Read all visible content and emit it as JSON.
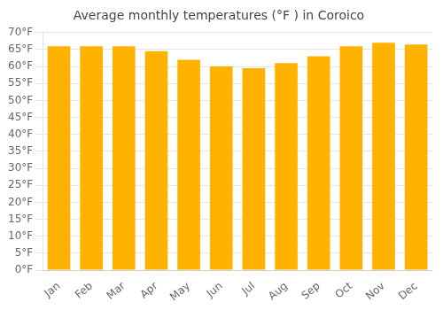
{
  "chart_data": {
    "type": "bar",
    "title": "Average monthly temperatures (°F ) in Coroico",
    "categories": [
      "Jan",
      "Feb",
      "Mar",
      "Apr",
      "May",
      "Jun",
      "Jul",
      "Aug",
      "Sep",
      "Oct",
      "Nov",
      "Dec"
    ],
    "values": [
      66,
      66,
      66,
      64.5,
      62,
      60,
      59.5,
      61,
      63,
      66,
      67,
      66.5
    ],
    "color": "#FFB300",
    "ylim": [
      0,
      70
    ],
    "yticks": [
      {
        "value": 0,
        "label": "0°F"
      },
      {
        "value": 5,
        "label": "5°F"
      },
      {
        "value": 10,
        "label": "10°F"
      },
      {
        "value": 15,
        "label": "15°F"
      },
      {
        "value": 20,
        "label": "20°F"
      },
      {
        "value": 25,
        "label": "25°F"
      },
      {
        "value": 30,
        "label": "30°F"
      },
      {
        "value": 35,
        "label": "35°F"
      },
      {
        "value": 40,
        "label": "40°F"
      },
      {
        "value": 45,
        "label": "45°F"
      },
      {
        "value": 50,
        "label": "50°F"
      },
      {
        "value": 55,
        "label": "55°F"
      },
      {
        "value": 60,
        "label": "60°F"
      },
      {
        "value": 65,
        "label": "65°F"
      },
      {
        "value": 70,
        "label": "70°F"
      }
    ],
    "grid": true
  }
}
